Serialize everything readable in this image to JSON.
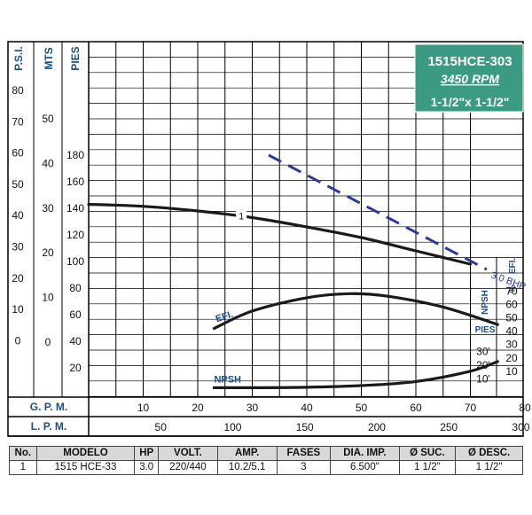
{
  "header": {
    "model": "1515HCE-303",
    "rpm": "3450 RPM",
    "size": "1-1/2\"x 1-1/2\""
  },
  "colors": {
    "header_bg": "#3a9a82",
    "axis_label_blue": "#1a4f8a",
    "curve": "#1a1a1a",
    "bhp_line": "#2b3a9e",
    "grid": "#000000"
  },
  "left_axes": {
    "psi": {
      "label": "P.S.I.",
      "ticks": [
        "80",
        "70",
        "60",
        "50",
        "40",
        "30",
        "20",
        "10",
        "0"
      ]
    },
    "mts": {
      "label": "MTS",
      "ticks": [
        "50",
        "40",
        "30",
        "20",
        "10",
        "0"
      ]
    },
    "pies": {
      "label": "PIES",
      "ticks": [
        "180",
        "160",
        "140",
        "120",
        "100",
        "80",
        "60",
        "40",
        "20"
      ]
    }
  },
  "right_axes": {
    "efi_label": "EFI.",
    "efi_unit": "%",
    "efi_ticks": [
      "70",
      "60",
      "50",
      "40",
      "30",
      "20",
      "10"
    ],
    "npsh_label": "NPSH",
    "pies_label": "PIES",
    "npsh_ticks": [
      "30'",
      "20'",
      "10'"
    ]
  },
  "bottom_axes": {
    "gpm": {
      "label": "G. P. M.",
      "ticks": [
        "10",
        "20",
        "30",
        "40",
        "50",
        "60",
        "70",
        "80"
      ]
    },
    "lpm": {
      "label": "L. P. M.",
      "ticks": [
        "50",
        "100",
        "150",
        "200",
        "250",
        "300"
      ]
    }
  },
  "chart_data": {
    "type": "line",
    "title": "1515HCE-303",
    "x_unit": "G.P.M.",
    "xlim": [
      0,
      85
    ],
    "series": [
      {
        "name": "1",
        "axis": "head_ft",
        "x": [
          0,
          10,
          20,
          30,
          40,
          50,
          60,
          70
        ],
        "y": [
          143,
          141.5,
          138,
          133,
          126,
          118,
          108,
          98
        ]
      },
      {
        "name": "3.0 BHP",
        "axis": "head_ft",
        "style": "dashed",
        "x": [
          33,
          73
        ],
        "y": [
          180,
          94
        ]
      },
      {
        "name": "EFI.",
        "axis": "efficiency_pct",
        "x": [
          23,
          30,
          40,
          48,
          55,
          65,
          75
        ],
        "y": [
          42,
          55,
          65,
          68,
          66,
          58,
          45
        ]
      },
      {
        "name": "NPSH",
        "axis": "npsh_ft",
        "x": [
          23,
          30,
          40,
          50,
          60,
          70,
          75
        ],
        "y": [
          3,
          3,
          3.3,
          4.5,
          7.5,
          15,
          22
        ]
      }
    ],
    "head_axis": {
      "ylabel": "PIES",
      "ylim": [
        0,
        180
      ]
    },
    "efficiency_axis": {
      "ylabel": "EFI. %",
      "ylim": [
        0,
        70
      ]
    },
    "npsh_axis": {
      "ylabel": "NPSH PIES",
      "ylim": [
        0,
        30
      ]
    }
  },
  "spec_table": {
    "headers": [
      "No.",
      "MODELO",
      "HP",
      "VOLT.",
      "AMP.",
      "FASES",
      "DIA. IMP.",
      "Ø SUC.",
      "Ø DESC."
    ],
    "rows": [
      [
        "1",
        "1515 HCE-33",
        "3.0",
        "220/440",
        "10.2/5.1",
        "3",
        "6.500\"",
        "1 1/2\"",
        "1 1/2\""
      ]
    ]
  }
}
